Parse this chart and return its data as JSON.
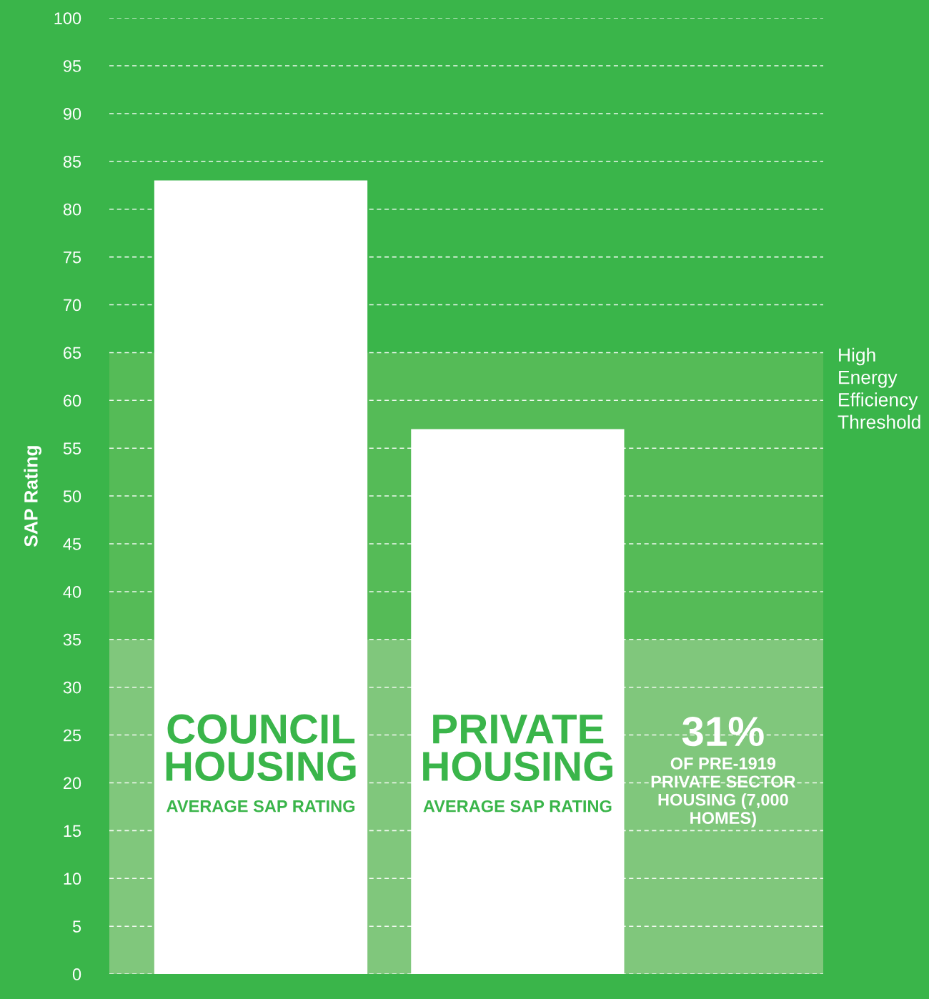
{
  "chart_data": {
    "type": "bar",
    "ylabel": "SAP Rating",
    "categories": [
      "COUNCIL\nHOUSING",
      "PRIVATE\nHOUSING"
    ],
    "values": [
      83,
      57
    ],
    "color": "#ffffff",
    "ylim": [
      0,
      100
    ],
    "yticks": [
      0,
      5,
      10,
      15,
      20,
      25,
      30,
      35,
      40,
      45,
      50,
      55,
      60,
      65,
      70,
      75,
      80,
      85,
      90,
      95,
      100
    ],
    "grid": "y",
    "bands": [
      {
        "axis": "y",
        "from": 0,
        "to": 35,
        "label": "31%",
        "color": "#80c77c"
      },
      {
        "axis": "y",
        "from": 35,
        "to": 65,
        "label": "High\nEnergy\nEfficiency\nThreshold",
        "color": "#55bb57"
      }
    ],
    "annotations": [
      "AVERAGE SAP RATING",
      "AVERAGE SAP RATING",
      "OF PRE-1919\nPRIVATE SECTOR\nHOUSING (7,000\nHOMES)"
    ]
  }
}
